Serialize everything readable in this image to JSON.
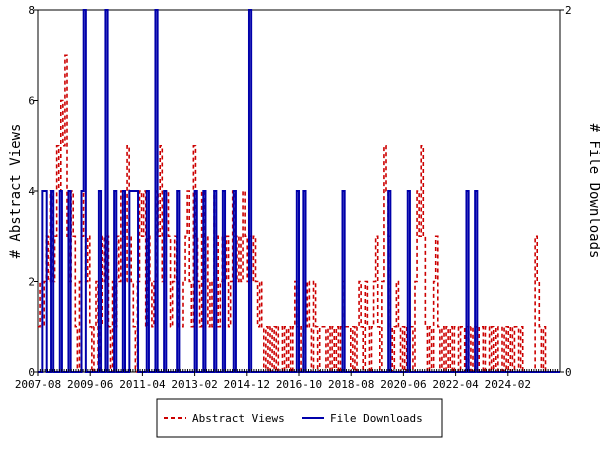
{
  "chart_data": {
    "type": "line",
    "title": "",
    "ylabel_left": "# Abstract Views",
    "ylabel_right": "# File Downloads",
    "y_left_range": [
      0,
      8
    ],
    "y_left_ticks": [
      0,
      2,
      4,
      6,
      8
    ],
    "y_right_range": [
      0,
      2
    ],
    "y_right_ticks": [
      0,
      2
    ],
    "x_range_months": [
      2007.58,
      2025.92
    ],
    "x_tick_labels": [
      "2007-08",
      "2009-06",
      "2011-04",
      "2013-02",
      "2014-12",
      "2016-10",
      "2018-08",
      "2020-06",
      "2022-04",
      "2024-02"
    ],
    "legend_position": "bottom-center",
    "grid": false,
    "series": [
      {
        "name": "Abstract Views",
        "color": "#cc0000",
        "dash": true,
        "axis": "left",
        "values": [
          1,
          2,
          1,
          2,
          3,
          2,
          4,
          2,
          3,
          5,
          4,
          6,
          5,
          7,
          3,
          2,
          4,
          3,
          1,
          0,
          2,
          3,
          4,
          2,
          3,
          1,
          0,
          1,
          2,
          0,
          1,
          3,
          2,
          3,
          1,
          0,
          2,
          1,
          3,
          2,
          4,
          3,
          2,
          5,
          3,
          2,
          1,
          0,
          2,
          4,
          3,
          4,
          1,
          3,
          2,
          1,
          2,
          4,
          3,
          5,
          2,
          3,
          4,
          3,
          1,
          2,
          3,
          2,
          1,
          1,
          2,
          3,
          4,
          2,
          1,
          5,
          3,
          2,
          1,
          4,
          2,
          3,
          1,
          2,
          1,
          4,
          3,
          1,
          2,
          3,
          2,
          3,
          1,
          2,
          4,
          3,
          2,
          3,
          2,
          4,
          3,
          2,
          3,
          2,
          3,
          2,
          1,
          2,
          1,
          0,
          1,
          0,
          1,
          0,
          1,
          0,
          1,
          1,
          0,
          1,
          0,
          1,
          0,
          1,
          2,
          1,
          0,
          1,
          0,
          1,
          2,
          1,
          0,
          2,
          1,
          0,
          1,
          1,
          1,
          0,
          1,
          0,
          1,
          0,
          1,
          0,
          1,
          2,
          1,
          1,
          1,
          0,
          1,
          0,
          1,
          2,
          1,
          0,
          2,
          1,
          0,
          1,
          2,
          3,
          1,
          0,
          2,
          5,
          4,
          3,
          1,
          0,
          1,
          2,
          1,
          0,
          1,
          0,
          1,
          1,
          1,
          0,
          2,
          4,
          3,
          5,
          3,
          1,
          0,
          1,
          0,
          2,
          3,
          1,
          0,
          1,
          0,
          1,
          0,
          1,
          0,
          1,
          1,
          0,
          1,
          1,
          0,
          1,
          0,
          1,
          0,
          1,
          0,
          1,
          1,
          0,
          1,
          1,
          0,
          1,
          0,
          1,
          0,
          0,
          1,
          0,
          1,
          0,
          1,
          0,
          1,
          1,
          0,
          1,
          0,
          0,
          0,
          0,
          0,
          0,
          3,
          2,
          1,
          0,
          1,
          0,
          0,
          0,
          0,
          0,
          0,
          0
        ]
      },
      {
        "name": "File Downloads",
        "color": "#0000aa",
        "dash": false,
        "axis": "right",
        "values": [
          0,
          0,
          1,
          1,
          0,
          0,
          1,
          0,
          0,
          0,
          1,
          0,
          0,
          0,
          1,
          0,
          0,
          0,
          0,
          0,
          1,
          2,
          0,
          0,
          0,
          0,
          0,
          0,
          1,
          0,
          0,
          2,
          0,
          0,
          0,
          1,
          0,
          0,
          0,
          1,
          0,
          0,
          1,
          1,
          1,
          1,
          0,
          0,
          0,
          0,
          1,
          0,
          0,
          0,
          2,
          0,
          0,
          0,
          1,
          0,
          0,
          0,
          0,
          0,
          1,
          0,
          0,
          0,
          0,
          0,
          0,
          0,
          1,
          0,
          0,
          0,
          1,
          0,
          0,
          0,
          0,
          1,
          0,
          0,
          0,
          1,
          0,
          0,
          0,
          0,
          1,
          0,
          0,
          0,
          0,
          0,
          0,
          2,
          0,
          0,
          0,
          0,
          0,
          0,
          0,
          0,
          0,
          0,
          0,
          0,
          0,
          0,
          0,
          0,
          0,
          0,
          0,
          0,
          0,
          1,
          0,
          0,
          1,
          0,
          0,
          0,
          0,
          0,
          0,
          0,
          0,
          0,
          0,
          0,
          0,
          0,
          0,
          0,
          0,
          0,
          1,
          0,
          0,
          0,
          0,
          0,
          0,
          0,
          0,
          0,
          0,
          0,
          0,
          0,
          0,
          0,
          0,
          0,
          0,
          0,
          0,
          1,
          0,
          0,
          0,
          0,
          0,
          0,
          0,
          0,
          1,
          0,
          0,
          0,
          0,
          0,
          0,
          0,
          0,
          0,
          0,
          0,
          0,
          0,
          0,
          0,
          0,
          0,
          0,
          0,
          0,
          0,
          0,
          0,
          0,
          0,
          0,
          1,
          0,
          0,
          0,
          1,
          0,
          0,
          0,
          0,
          0,
          0,
          0,
          0,
          0,
          0,
          0,
          0,
          0,
          0,
          0,
          0,
          0,
          0,
          0,
          0,
          0,
          0,
          0,
          0,
          0,
          0,
          0,
          0,
          0,
          0,
          0,
          0,
          0,
          0,
          0,
          0,
          0,
          0
        ]
      }
    ]
  }
}
